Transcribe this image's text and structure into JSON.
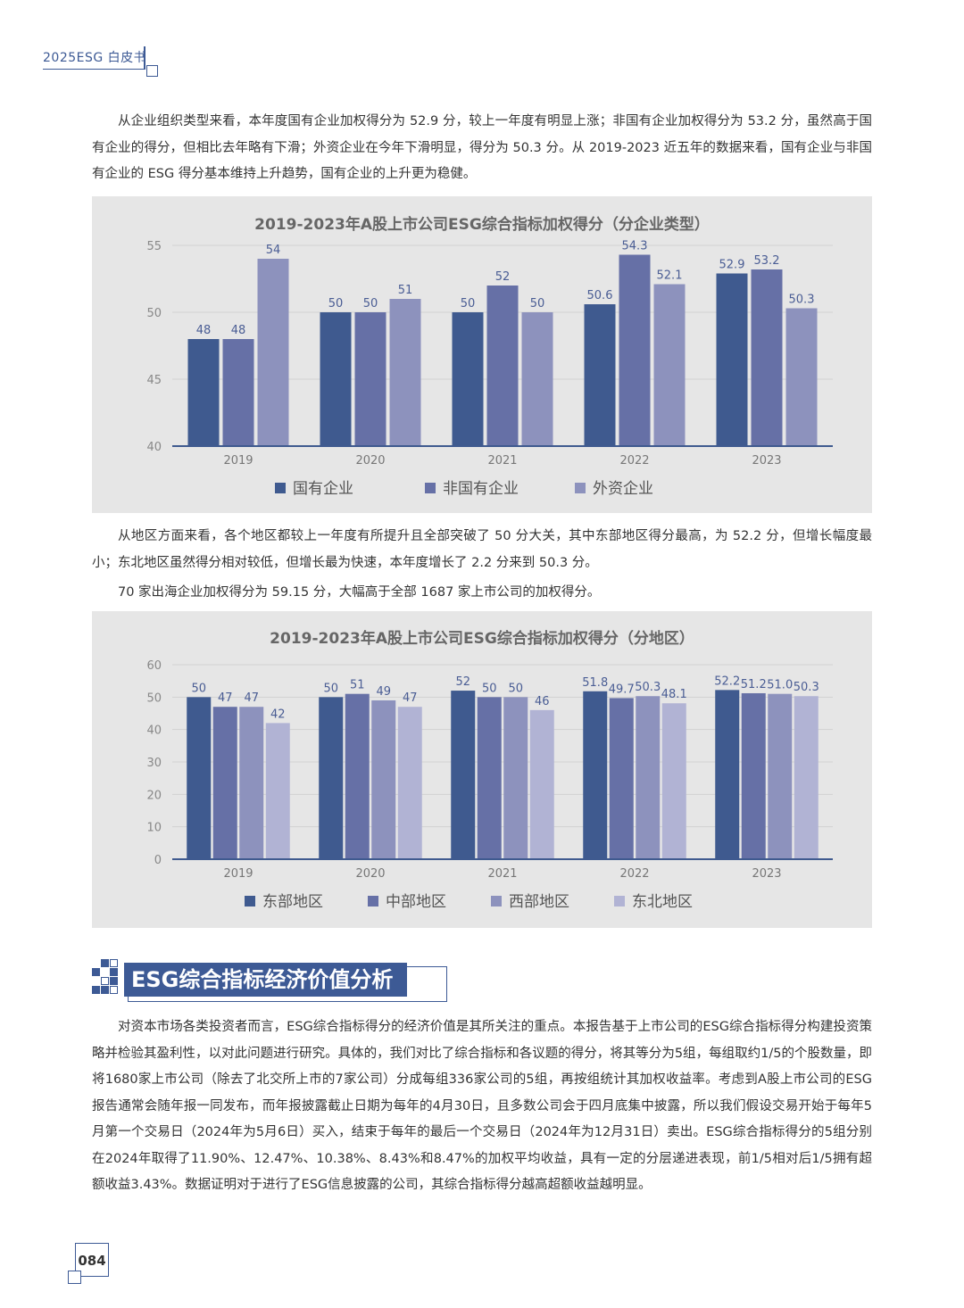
{
  "header": {
    "title": "2025ESG 白皮书"
  },
  "intro_paragraph": "从企业组织类型来看，本年度国有企业加权得分为 52.9 分，较上一年度有明显上涨；非国有企业加权得分为 53.2 分，虽然高于国有企业的得分，但相比去年略有下滑；外资企业在今年下滑明显，得分为 50.3 分。从 2019-2023 近五年的数据来看，国有企业与非国有企业的 ESG 得分基本维持上升趋势，国有企业的上升更为稳健。",
  "region_paragraph": "从地区方面来看，各个地区都较上一年度有所提升且全部突破了 50 分大关，其中东部地区得分最高，为 52.2 分，但增长幅度最小；东北地区虽然得分相对较低，但增长最为快速，本年度增长了 2.2 分来到 50.3 分。",
  "overseas_paragraph": "70 家出海企业加权得分为 59.15 分，大幅高于全部 1687 家上市公司的加权得分。",
  "section": {
    "title": "ESG综合指标经济价值分析"
  },
  "value_paragraph": "对资本市场各类投资者而言，ESG综合指标得分的经济价值是其所关注的重点。本报告基于上市公司的ESG综合指标得分构建投资策略并检验其盈利性，以对此问题进行研究。具体的，我们对比了综合指标和各议题的得分，将其等分为5组，每组取约1/5的个股数量，即将1680家上市公司（除去了北交所上市的7家公司）分成每组336家公司的5组，再按组统计其加权收益率。考虑到A股上市公司的ESG报告通常会随年报一同发布，而年报披露截止日期为每年的4月30日，且多数公司会于四月底集中披露，所以我们假设交易开始于每年5月第一个交易日（2024年为5月6日）买入，结束于每年的最后一个交易日（2024年为12月31日）卖出。ESG综合指标得分的5组分别在2024年取得了11.90%、12.47%、10.38%、8.43%和8.47%的加权平均收益，具有一定的分层递进表现，前1/5相对后1/5拥有超额收益3.43%。数据证明对于进行了ESG信息披露的公司，其综合指标得分越高超额收益越明显。",
  "page_number": "084",
  "chart_data": [
    {
      "type": "bar",
      "title": "2019-2023年A股上市公司ESG综合指标加权得分（分企业类型）",
      "categories": [
        "2019",
        "2020",
        "2021",
        "2022",
        "2023"
      ],
      "series": [
        {
          "name": "国有企业",
          "color": "#3f5a8f",
          "values": [
            48,
            50,
            50,
            50.6,
            52.9
          ],
          "labels": [
            "48",
            "50",
            "50",
            "50.6",
            "52.9"
          ]
        },
        {
          "name": "非国有企业",
          "color": "#6670a6",
          "values": [
            48,
            50,
            52,
            54.3,
            53.2
          ],
          "labels": [
            "48",
            "50",
            "52",
            "54.3",
            "53.2"
          ]
        },
        {
          "name": "外资企业",
          "color": "#8d92bd",
          "values": [
            54,
            51,
            50,
            52.1,
            50.3
          ],
          "labels": [
            "54",
            "51",
            "50",
            "52.1",
            "50.3"
          ]
        }
      ],
      "ylim": [
        40,
        55
      ],
      "yticks": [
        "40",
        "45",
        "50",
        "55"
      ],
      "grid": true,
      "legend": "bottom"
    },
    {
      "type": "bar",
      "title": "2019-2023年A股上市公司ESG综合指标加权得分（分地区）",
      "categories": [
        "2019",
        "2020",
        "2021",
        "2022",
        "2023"
      ],
      "series": [
        {
          "name": "东部地区",
          "color": "#3f5a8f",
          "values": [
            50,
            50,
            52,
            51.8,
            52.2
          ],
          "labels": [
            "50",
            "50",
            "52",
            "51.8",
            "52.2"
          ]
        },
        {
          "name": "中部地区",
          "color": "#6670a6",
          "values": [
            47,
            51,
            50,
            49.7,
            51.2
          ],
          "labels": [
            "47",
            "51",
            "50",
            "49.7",
            "51.2"
          ]
        },
        {
          "name": "西部地区",
          "color": "#8d92bd",
          "values": [
            47,
            49,
            50,
            50.3,
            51.0
          ],
          "labels": [
            "47",
            "49",
            "50",
            "50.3",
            "51.0"
          ]
        },
        {
          "name": "东北地区",
          "color": "#b1b3d4",
          "values": [
            42,
            47,
            46,
            48.1,
            50.3
          ],
          "labels": [
            "42",
            "47",
            "46",
            "48.1",
            "50.3"
          ]
        }
      ],
      "ylim": [
        0,
        60
      ],
      "yticks": [
        "0",
        "10",
        "20",
        "30",
        "40",
        "50",
        "60"
      ],
      "grid": true,
      "legend": "bottom"
    }
  ]
}
